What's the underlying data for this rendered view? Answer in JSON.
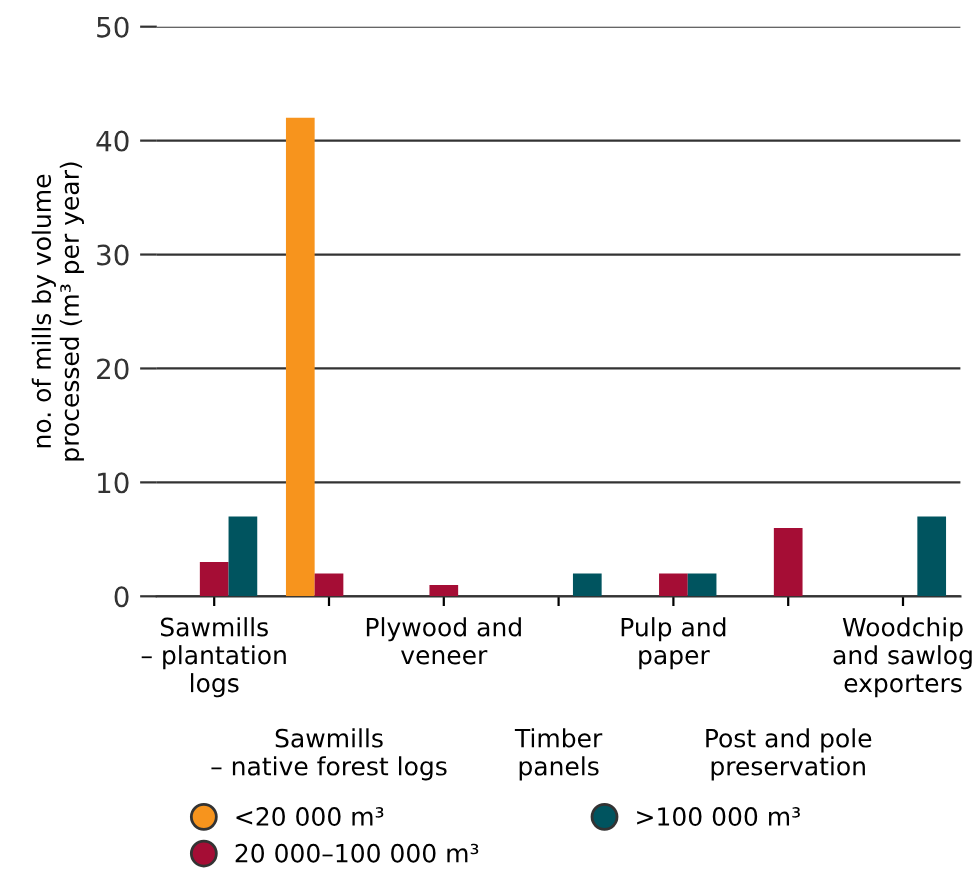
{
  "chart_data": {
    "type": "bar",
    "ylabel": "no. of mills by volume\nprocessed (m³ per year)",
    "categories": [
      "Sawmills\n– plantation\nlogs",
      "Sawmills\n– native forest logs",
      "Plywood and\nveneer",
      "Timber\npanels",
      "Pulp and\npaper",
      "Post and pole\npreservation",
      "Woodchip\nand sawlog\nexporters"
    ],
    "series": [
      {
        "name": "<20 000 m³",
        "color": "#f7941d",
        "values": [
          0,
          42,
          0,
          0,
          0,
          0,
          0
        ]
      },
      {
        "name": "20 000–100 000 m³",
        "color": "#a50d35",
        "values": [
          3,
          2,
          1,
          0,
          2,
          6,
          0
        ]
      },
      {
        "name": ">100 000 m³",
        "color": "#00545f",
        "values": [
          7,
          0,
          0,
          2,
          2,
          0,
          7
        ]
      }
    ],
    "ylim": [
      0,
      50
    ],
    "yticks": [
      0,
      10,
      20,
      30,
      40,
      50
    ],
    "grid": "y",
    "legend": "bottom"
  }
}
